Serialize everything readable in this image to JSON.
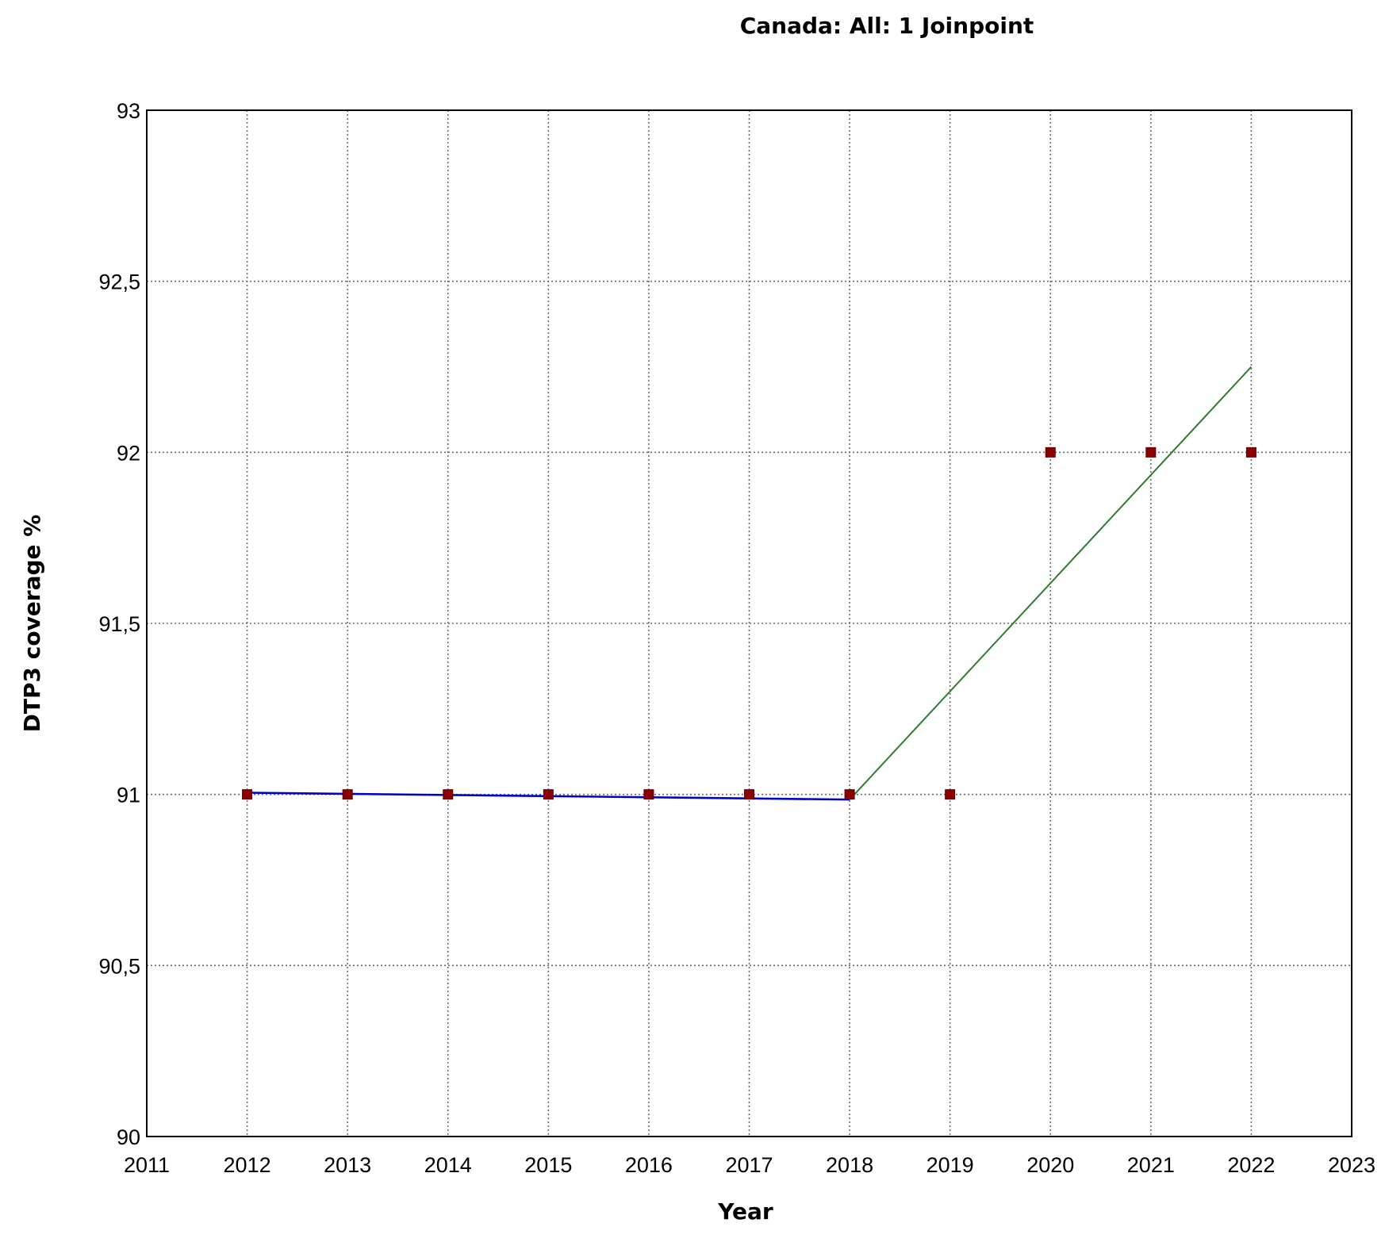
{
  "chart_data": {
    "type": "scatter",
    "title": "Canada: All: 1 Joinpoint",
    "xlabel": "Year",
    "ylabel": "DTP3 coverage %",
    "xlim": [
      2011,
      2023
    ],
    "ylim": [
      90,
      93
    ],
    "x_ticks": [
      "2011",
      "2012",
      "2013",
      "2014",
      "2015",
      "2016",
      "2017",
      "2018",
      "2019",
      "2020",
      "2021",
      "2022",
      "2023"
    ],
    "y_ticks": [
      "90",
      "90,5",
      "91",
      "91,5",
      "92",
      "92,5",
      "93"
    ],
    "grid": true,
    "observed": {
      "marker": "square",
      "color": "#8b0000",
      "x": [
        2012,
        2013,
        2014,
        2015,
        2016,
        2017,
        2018,
        2019,
        2020,
        2021,
        2022
      ],
      "y": [
        91,
        91,
        91,
        91,
        91,
        91,
        91,
        91,
        92,
        92,
        92
      ]
    },
    "fitted_segments": [
      {
        "color": "#0000cc",
        "x": [
          2012,
          2018
        ],
        "y": [
          91.005,
          90.985
        ]
      },
      {
        "color": "#2e7d2e",
        "x": [
          2018,
          2022
        ],
        "y": [
          90.985,
          92.25
        ]
      }
    ]
  }
}
